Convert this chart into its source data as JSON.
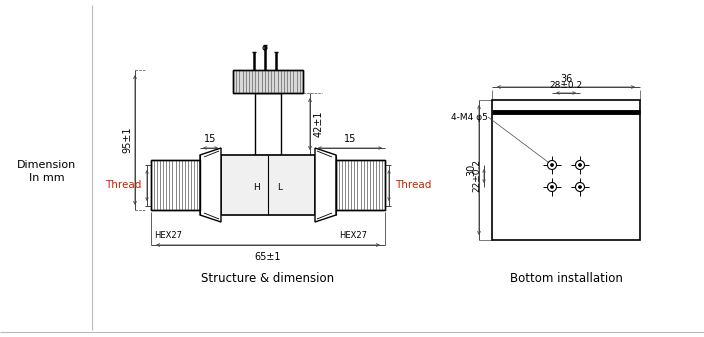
{
  "bg_color": "#ffffff",
  "line_color": "#000000",
  "dim_color": "#444444",
  "thread_color": "#cc2200",
  "text_color": "#000000",
  "left_label_line1": "Dimension",
  "left_label_line2": "In mm",
  "caption_left": "Structure & dimension",
  "caption_right": "Bottom installation",
  "dim_95": "95±1",
  "dim_42": "42±1",
  "dim_65": "65±1",
  "dim_15_left": "15",
  "dim_15_right": "15",
  "dim_hex_left": "HEX27",
  "dim_hex_right": "HEX27",
  "dim_36": "36",
  "dim_28": "28±0.2",
  "dim_30": "30",
  "dim_22": "22±0.2",
  "dim_m4": "4-M4 φ5",
  "thread_left": "Thread",
  "thread_right": "Thread",
  "label_h": "H",
  "label_l": "L"
}
